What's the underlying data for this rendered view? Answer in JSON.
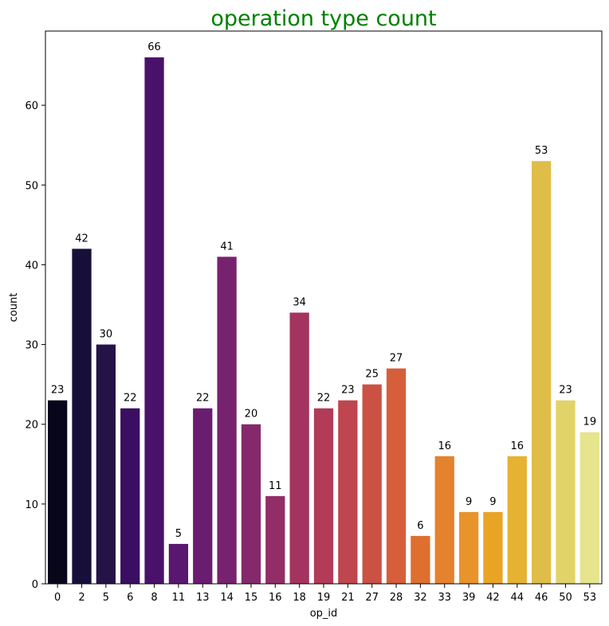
{
  "chart_data": {
    "type": "bar",
    "title": "operation type count",
    "title_color": "#008000",
    "xlabel": "op_id",
    "ylabel": "count",
    "categories": [
      "0",
      "2",
      "5",
      "6",
      "8",
      "11",
      "13",
      "14",
      "15",
      "16",
      "18",
      "19",
      "21",
      "27",
      "28",
      "32",
      "33",
      "39",
      "42",
      "44",
      "46",
      "50",
      "53"
    ],
    "values": [
      23,
      42,
      30,
      22,
      66,
      5,
      22,
      41,
      20,
      11,
      34,
      22,
      23,
      25,
      27,
      6,
      16,
      9,
      9,
      16,
      53,
      23,
      19
    ],
    "data_labels": [
      "23",
      "42",
      "30",
      "22",
      "66",
      "5",
      "22",
      "41",
      "20",
      "11",
      "34",
      "22",
      "23",
      "25",
      "27",
      "6",
      "16",
      "9",
      "9",
      "16",
      "53",
      "23",
      "19"
    ],
    "ylim": [
      0,
      69.3
    ],
    "yticks": [
      0,
      10,
      20,
      30,
      40,
      50,
      60
    ],
    "ytick_labels": [
      "0",
      "10",
      "20",
      "30",
      "40",
      "50",
      "60"
    ],
    "grid": false,
    "colors": [
      "#07061a",
      "#170f3a",
      "#251347",
      "#3a0f61",
      "#4a116a",
      "#5a1770",
      "#6a1d70",
      "#77226e",
      "#85296c",
      "#932d66",
      "#a3345f",
      "#b23b58",
      "#bf454f",
      "#cb5144",
      "#d65e3a",
      "#df6f2e",
      "#e5822d",
      "#e8942a",
      "#e9a426",
      "#e6b232",
      "#e0bd48",
      "#e2d368",
      "#e6e48d"
    ]
  }
}
